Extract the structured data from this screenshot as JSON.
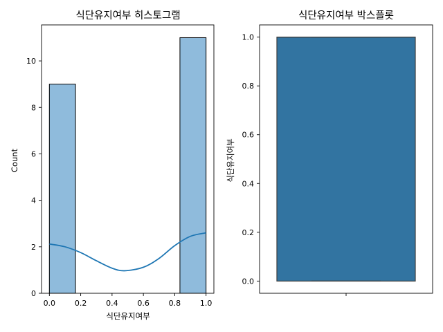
{
  "colors": {
    "hist_fill": "#8fbbdc",
    "kde_line": "#1f77b4",
    "box_fill": "#3274a1",
    "box_edge": "#3d3d3d",
    "axis": "#000000"
  },
  "chart_data": [
    {
      "type": "histogram",
      "title": "식단유지여부 히스토그램",
      "xlabel": "식단유지여부",
      "ylabel": "Count",
      "xlim": [
        -0.05,
        1.05
      ],
      "ylim": [
        0,
        11.55
      ],
      "xticks": [
        0.0,
        0.2,
        0.4,
        0.6,
        0.8,
        1.0
      ],
      "xtick_labels": [
        "0.0",
        "0.2",
        "0.4",
        "0.6",
        "0.8",
        "1.0"
      ],
      "yticks": [
        0,
        2,
        4,
        6,
        8,
        10
      ],
      "ytick_labels": [
        "0",
        "2",
        "4",
        "6",
        "8",
        "10"
      ],
      "bins": [
        {
          "x0": 0.0,
          "x1": 0.1667,
          "count": 9
        },
        {
          "x0": 0.8333,
          "x1": 1.0,
          "count": 11
        }
      ],
      "kde": {
        "x": [
          0.0,
          0.1,
          0.2,
          0.3,
          0.4,
          0.48,
          0.6,
          0.7,
          0.8,
          0.9,
          1.0
        ],
        "y": [
          2.12,
          2.0,
          1.75,
          1.4,
          1.08,
          0.97,
          1.12,
          1.5,
          2.05,
          2.45,
          2.6
        ]
      },
      "grid": false,
      "legend": "none"
    },
    {
      "type": "box",
      "title": "식단유지여부 박스플롯",
      "xlabel": "",
      "ylabel": "식단유지여부",
      "ylim": [
        -0.05,
        1.05
      ],
      "yticks": [
        0.0,
        0.2,
        0.4,
        0.6,
        0.8,
        1.0
      ],
      "ytick_labels": [
        "0.0",
        "0.2",
        "0.4",
        "0.6",
        "0.8",
        "1.0"
      ],
      "stats": {
        "min": 0.0,
        "q1": 0.0,
        "median": 1.0,
        "q3": 1.0,
        "max": 1.0
      },
      "grid": false,
      "legend": "none"
    }
  ]
}
